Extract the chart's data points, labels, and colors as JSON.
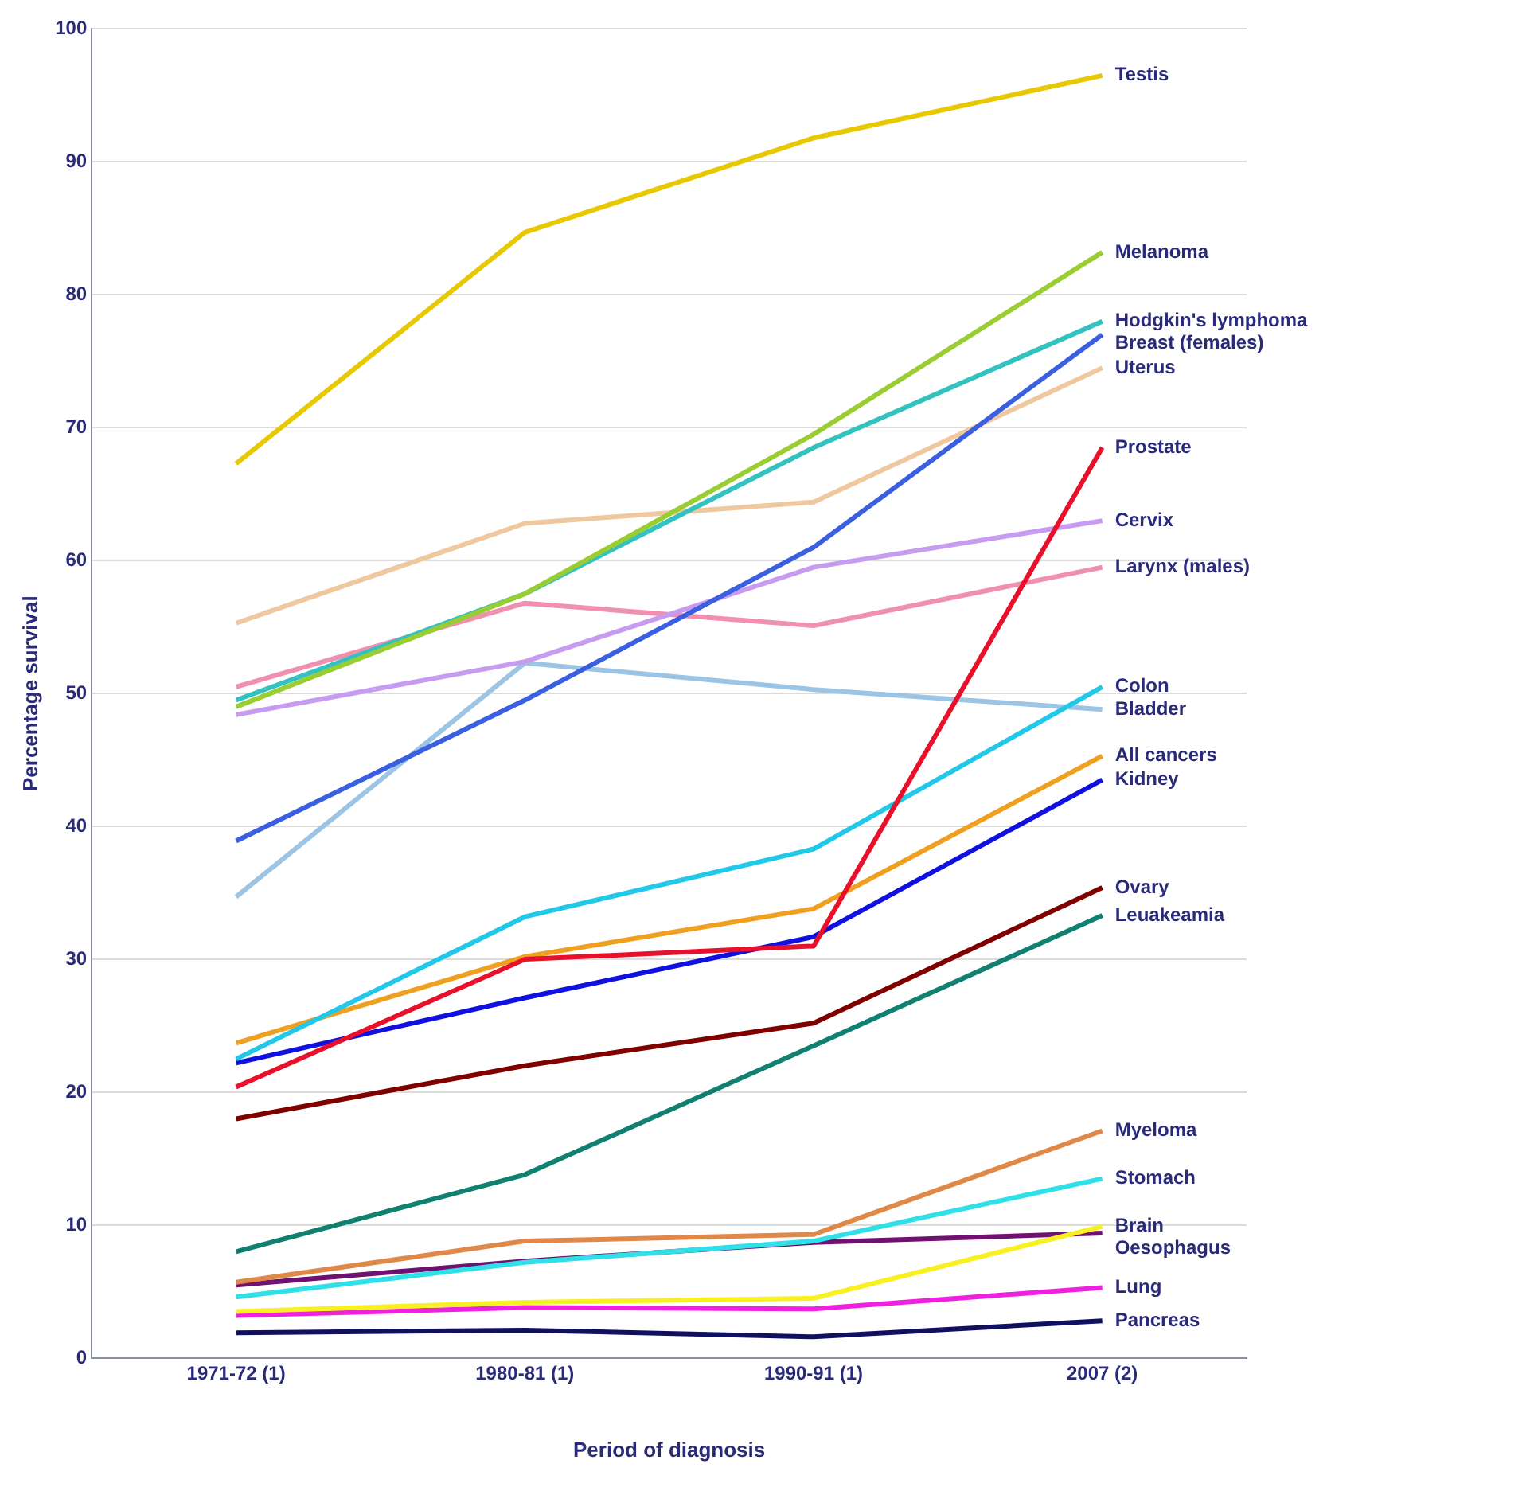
{
  "chart_data": {
    "type": "line",
    "xlabel": "Period of diagnosis",
    "ylabel": "Percentage survival",
    "categories": [
      "1971-72 (1)",
      "1980-81 (1)",
      "1990-91 (1)",
      "2007 (2)"
    ],
    "ylim": [
      0,
      100
    ],
    "yticks": [
      0,
      10,
      20,
      30,
      40,
      50,
      60,
      70,
      80,
      90,
      100
    ],
    "grid": "y",
    "legend": false,
    "marker": "none",
    "line_style": "solid",
    "series": [
      {
        "name": "Testis",
        "color": "#e8c800",
        "values": [
          67.3,
          84.7,
          91.8,
          96.5
        ]
      },
      {
        "name": "Melanoma",
        "color": "#9acd32",
        "values": [
          49,
          57.5,
          69.5,
          83.2
        ]
      },
      {
        "name": "Hodgkin's lymphoma",
        "color": "#33c2c0",
        "values": [
          49.5,
          57.5,
          68.5,
          78
        ]
      },
      {
        "name": "Breast (females)",
        "color": "#3a5fe0",
        "values": [
          38.9,
          49.5,
          61,
          77
        ]
      },
      {
        "name": "Uterus",
        "color": "#f0c8a0",
        "values": [
          55.3,
          62.8,
          64.4,
          74.5
        ]
      },
      {
        "name": "Prostate",
        "color": "#e8102a",
        "values": [
          20.4,
          30,
          31,
          68.5
        ]
      },
      {
        "name": "Cervix",
        "color": "#c79cf0",
        "values": [
          48.4,
          52.4,
          59.5,
          63
        ]
      },
      {
        "name": "Larynx (males)",
        "color": "#f090b0",
        "values": [
          50.5,
          56.8,
          55.1,
          59.5
        ]
      },
      {
        "name": "Colon",
        "color": "#22c8e8",
        "values": [
          22.5,
          33.2,
          38.3,
          50.5
        ]
      },
      {
        "name": "Bladder",
        "color": "#9cc4e4",
        "values": [
          34.7,
          52.3,
          50.3,
          48.8
        ]
      },
      {
        "name": "All cancers",
        "color": "#f0a020",
        "values": [
          23.7,
          30.2,
          33.8,
          45.3
        ]
      },
      {
        "name": "Kidney",
        "color": "#1010e0",
        "values": [
          22.2,
          27.1,
          31.7,
          43.5
        ]
      },
      {
        "name": "Ovary",
        "color": "#800000",
        "values": [
          18,
          22,
          25.2,
          35.4
        ]
      },
      {
        "name": "Leuakeamia",
        "color": "#108070",
        "values": [
          8,
          13.8,
          23.5,
          33.3
        ]
      },
      {
        "name": "Myeloma",
        "color": "#e08848",
        "values": [
          5.7,
          8.8,
          9.3,
          17.1
        ]
      },
      {
        "name": "Stomach",
        "color": "#30e0e8",
        "values": [
          4.6,
          7.2,
          8.8,
          13.5
        ]
      },
      {
        "name": "Brain",
        "color": "#f8f020",
        "values": [
          3.5,
          4.2,
          4.5,
          9.9
        ]
      },
      {
        "name": "Oesophagus",
        "color": "#701070",
        "values": [
          5.5,
          7.3,
          8.7,
          9.4
        ]
      },
      {
        "name": "Lung",
        "color": "#f020e0",
        "values": [
          3.2,
          3.8,
          3.7,
          5.3
        ]
      },
      {
        "name": "Pancreas",
        "color": "#101060",
        "values": [
          1.9,
          2.1,
          1.6,
          2.8
        ]
      }
    ]
  }
}
